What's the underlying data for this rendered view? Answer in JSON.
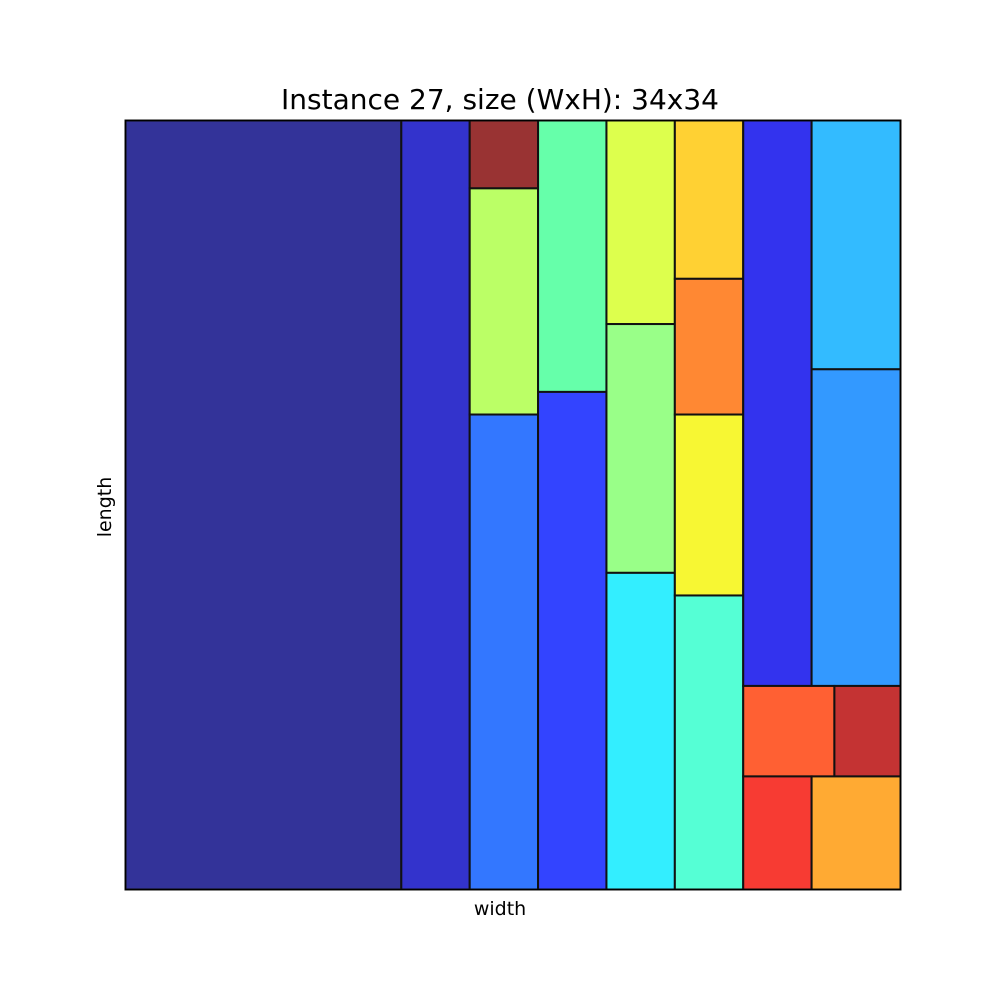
{
  "title": "Instance 27, size (WxH): 34x34",
  "xlabel": "width",
  "ylabel": "length",
  "chart_data": {
    "type": "rectangle-packing",
    "container": {
      "width": 34,
      "height": 34
    },
    "rectangles": [
      {
        "x": 0,
        "y": 0,
        "w": 12.1,
        "h": 34,
        "color": "#333399"
      },
      {
        "x": 12.1,
        "y": 0,
        "w": 3,
        "h": 34,
        "color": "#3333cc"
      },
      {
        "x": 15.1,
        "y": 31,
        "w": 3,
        "h": 3,
        "color": "#993333"
      },
      {
        "x": 15.1,
        "y": 21,
        "w": 3,
        "h": 10,
        "color": "#bbff66"
      },
      {
        "x": 15.1,
        "y": 0,
        "w": 3,
        "h": 21,
        "color": "#3377ff"
      },
      {
        "x": 18.1,
        "y": 22,
        "w": 3,
        "h": 12,
        "color": "#66ffaa"
      },
      {
        "x": 18.1,
        "y": 0,
        "w": 3,
        "h": 22,
        "color": "#3344ff"
      },
      {
        "x": 21.1,
        "y": 25,
        "w": 3,
        "h": 9,
        "color": "#ddff4d"
      },
      {
        "x": 21.1,
        "y": 14,
        "w": 3,
        "h": 11,
        "color": "#99ff88"
      },
      {
        "x": 21.1,
        "y": 0,
        "w": 3,
        "h": 14,
        "color": "#33eeff"
      },
      {
        "x": 24.1,
        "y": 27,
        "w": 3,
        "h": 7,
        "color": "#ffd133"
      },
      {
        "x": 24.1,
        "y": 21,
        "w": 3,
        "h": 6,
        "color": "#ff8833"
      },
      {
        "x": 24.1,
        "y": 13,
        "w": 3,
        "h": 8,
        "color": "#f7f733"
      },
      {
        "x": 24.1,
        "y": 0,
        "w": 3,
        "h": 13,
        "color": "#55ffd5"
      },
      {
        "x": 27.1,
        "y": 9,
        "w": 3,
        "h": 25,
        "color": "#3333ee"
      },
      {
        "x": 30.1,
        "y": 23,
        "w": 3.9,
        "h": 11,
        "color": "#33bbff"
      },
      {
        "x": 30.1,
        "y": 9,
        "w": 3.9,
        "h": 14,
        "color": "#3399ff"
      },
      {
        "x": 27.1,
        "y": 5,
        "w": 4,
        "h": 4,
        "color": "#ff6033"
      },
      {
        "x": 31.1,
        "y": 5,
        "w": 2.9,
        "h": 4,
        "color": "#c43333"
      },
      {
        "x": 27.1,
        "y": 0,
        "w": 3,
        "h": 5,
        "color": "#f73b33"
      },
      {
        "x": 30.1,
        "y": 0,
        "w": 3.9,
        "h": 5,
        "color": "#ffaa33"
      }
    ]
  }
}
